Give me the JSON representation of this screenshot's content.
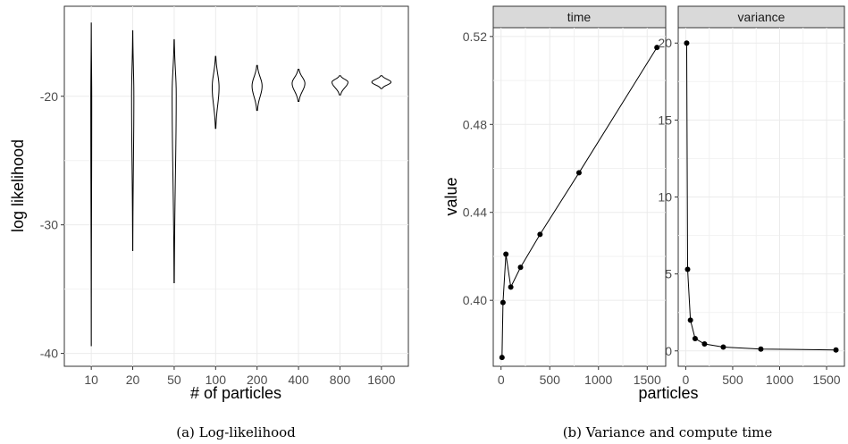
{
  "captions": {
    "a": "(a) Log-likelihood",
    "b": "(b) Variance and compute time"
  },
  "chart_data": [
    {
      "type": "violin",
      "xlabel": "# of particles",
      "ylabel": "log likelihood",
      "categories": [
        "10",
        "20",
        "50",
        "100",
        "200",
        "400",
        "800",
        "1600"
      ],
      "ylim": [
        -41,
        -13
      ],
      "yticks": [
        -40,
        -30,
        -20
      ],
      "ytick_labels": [
        "-40",
        "-30",
        "-20"
      ],
      "grid": true,
      "violins": [
        {
          "category": "10",
          "min": -39.4,
          "max": -14.3,
          "center": -20.3,
          "spread": 0.02
        },
        {
          "category": "20",
          "min": -32.0,
          "max": -14.9,
          "center": -20.0,
          "spread": 0.05
        },
        {
          "category": "50",
          "min": -34.5,
          "max": -15.6,
          "center": -19.8,
          "spread": 0.09
        },
        {
          "category": "100",
          "min": -22.5,
          "max": -16.9,
          "center": -19.3,
          "spread": 0.15
        },
        {
          "category": "200",
          "min": -21.1,
          "max": -17.6,
          "center": -19.2,
          "spread": 0.22
        },
        {
          "category": "400",
          "min": -20.4,
          "max": -17.9,
          "center": -19.0,
          "spread": 0.28
        },
        {
          "category": "800",
          "min": -19.9,
          "max": -18.4,
          "center": -18.9,
          "spread": 0.35
        },
        {
          "category": "1600",
          "min": -19.4,
          "max": -18.4,
          "center": -18.9,
          "spread": 0.42
        }
      ]
    },
    {
      "type": "line",
      "facet": "time",
      "xlabel": "particles",
      "ylabel": "value",
      "x": [
        10,
        20,
        50,
        100,
        200,
        400,
        800,
        1600
      ],
      "y": [
        0.374,
        0.399,
        0.421,
        0.406,
        0.415,
        0.43,
        0.458,
        0.515
      ],
      "xlim": [
        -80,
        1690
      ],
      "ylim": [
        0.37,
        0.524
      ],
      "xticks": [
        0,
        500,
        1000,
        1500
      ],
      "yticks": [
        0.4,
        0.44,
        0.48,
        0.52
      ],
      "ytick_labels": [
        "0.40",
        "0.44",
        "0.48",
        "0.52"
      ],
      "grid": true
    },
    {
      "type": "line",
      "facet": "variance",
      "xlabel": "particles",
      "ylabel": "value",
      "x": [
        10,
        20,
        50,
        100,
        200,
        400,
        800,
        1600
      ],
      "y": [
        20.0,
        5.3,
        2.0,
        0.8,
        0.45,
        0.25,
        0.12,
        0.06
      ],
      "xlim": [
        -80,
        1690
      ],
      "ylim": [
        -1.0,
        21.0
      ],
      "xticks": [
        0,
        500,
        1000,
        1500
      ],
      "yticks": [
        0,
        5,
        10,
        15,
        20
      ],
      "ytick_labels": [
        "0",
        "5",
        "10",
        "15",
        "20"
      ],
      "grid": true
    }
  ]
}
